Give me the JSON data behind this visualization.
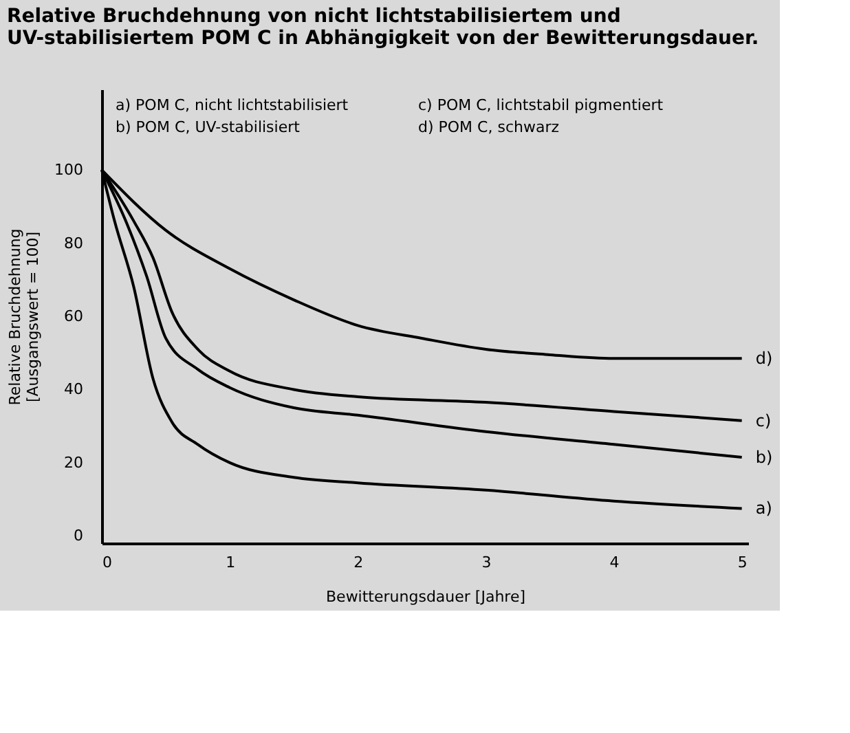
{
  "chart_data": {
    "type": "line",
    "title": "Relative Bruchdehnung von nicht lichtstabilisiertem und\nUV-stabilisiertem POM C in Abhängigkeit von der Bewitterungsdauer.",
    "xlabel": "Bewitterungsdauer [Jahre]",
    "ylabel": "Relative Bruchdehnung\n[Ausgangswert = 100]",
    "xlim": [
      0,
      5.05
    ],
    "xticks": [
      0,
      1,
      2,
      3,
      4,
      5
    ],
    "ylim": [
      -2,
      122
    ],
    "yticks": [
      0,
      20,
      40,
      60,
      80,
      100
    ],
    "line_style": "solid",
    "marker": "none",
    "annotations": [
      "a) POM C, nicht lichtstabilisiert",
      "b) POM C, UV-stabilisiert",
      "c) POM C, lichtstabil pigmentiert",
      "d) POM C, schwarz"
    ],
    "series": [
      {
        "name": "a)",
        "color": "#000000",
        "x": [
          0,
          0.1,
          0.25,
          0.4,
          0.55,
          0.75,
          1,
          1.5,
          2,
          3,
          4,
          5
        ],
        "values": [
          100,
          86,
          68,
          43,
          31,
          25,
          20,
          16,
          14.5,
          12.5,
          9.5,
          7.5
        ]
      },
      {
        "name": "b)",
        "color": "#000000",
        "x": [
          0,
          0.2,
          0.35,
          0.5,
          0.75,
          1,
          1.5,
          2,
          3,
          4,
          5
        ],
        "values": [
          100,
          85,
          71,
          54,
          45.5,
          40.5,
          35,
          33,
          28.5,
          25,
          21.5
        ]
      },
      {
        "name": "c)",
        "color": "#000000",
        "x": [
          0,
          0.25,
          0.4,
          0.55,
          0.75,
          1,
          1.5,
          2,
          3,
          4,
          5
        ],
        "values": [
          100,
          86,
          76,
          61,
          51,
          45,
          40,
          38,
          36.5,
          34,
          31.5
        ]
      },
      {
        "name": "d)",
        "color": "#000000",
        "x": [
          0,
          0.5,
          1,
          1.5,
          2,
          2.5,
          3,
          3.5,
          4,
          5
        ],
        "values": [
          100,
          83.5,
          73,
          64.5,
          57.5,
          54,
          51,
          49.5,
          48.5,
          48.5
        ]
      }
    ]
  }
}
